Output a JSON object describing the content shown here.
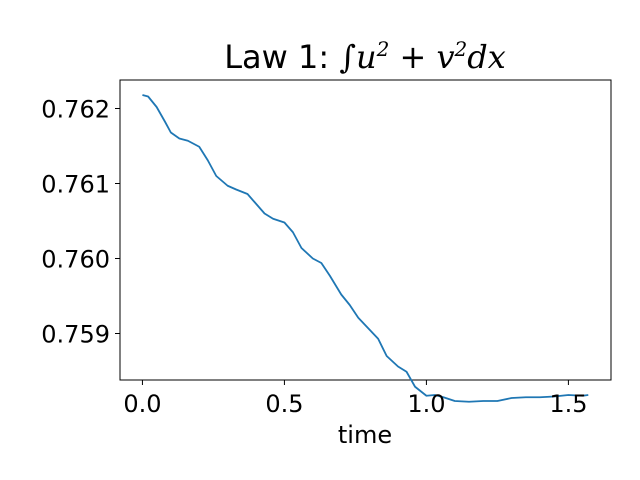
{
  "chart_data": {
    "type": "line",
    "title": "Law 1: ∫u² + v²dx",
    "title_parts": {
      "prefix": "Law 1: ",
      "integral": "∫",
      "u": "u",
      "sup1": "2",
      "plus": " + ",
      "v": "v",
      "sup2": "2",
      "dx": "dx"
    },
    "xlabel": "time",
    "ylabel": "",
    "xlim": [
      -0.079,
      1.65
    ],
    "ylim": [
      0.75838,
      0.76238
    ],
    "xticks": [
      0.0,
      0.5,
      1.0,
      1.5
    ],
    "xtick_labels": [
      "0.0",
      "0.5",
      "1.0",
      "1.5"
    ],
    "yticks": [
      0.759,
      0.76,
      0.761,
      0.762
    ],
    "ytick_labels": [
      "0.759",
      "0.760",
      "0.761",
      "0.762"
    ],
    "grid": false,
    "line_color": "#1f77b4",
    "series": [
      {
        "x": [
          0.0,
          0.02,
          0.05,
          0.08,
          0.1,
          0.13,
          0.16,
          0.2,
          0.23,
          0.26,
          0.3,
          0.33,
          0.37,
          0.4,
          0.43,
          0.46,
          0.5,
          0.53,
          0.56,
          0.6,
          0.63,
          0.66,
          0.7,
          0.73,
          0.76,
          0.8,
          0.83,
          0.86,
          0.9,
          0.93,
          0.96,
          1.0,
          1.03,
          1.06,
          1.1,
          1.15,
          1.2,
          1.25,
          1.3,
          1.35,
          1.4,
          1.45,
          1.5,
          1.55,
          1.57
        ],
        "y": [
          0.76218,
          0.76216,
          0.76202,
          0.76182,
          0.76168,
          0.7616,
          0.76157,
          0.76149,
          0.76131,
          0.7611,
          0.76097,
          0.76092,
          0.76086,
          0.76073,
          0.7606,
          0.76053,
          0.76048,
          0.76035,
          0.76014,
          0.76,
          0.75994,
          0.75977,
          0.75952,
          0.75938,
          0.75921,
          0.75905,
          0.75893,
          0.7587,
          0.75856,
          0.75849,
          0.75829,
          0.75817,
          0.75818,
          0.75815,
          0.7581,
          0.75809,
          0.7581,
          0.7581,
          0.75814,
          0.75815,
          0.75815,
          0.75816,
          0.75818,
          0.75817,
          0.75818
        ]
      }
    ]
  }
}
